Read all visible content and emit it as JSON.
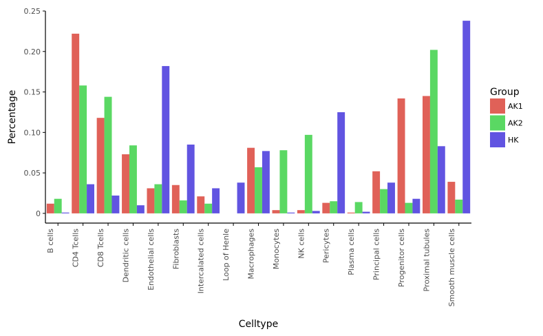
{
  "chart_data": {
    "type": "bar",
    "xlabel": "Celltype",
    "ylabel": "Percentage",
    "ylim": [
      -0.012,
      0.25
    ],
    "yticks": [
      0,
      0.05,
      0.1,
      0.15,
      0.2,
      0.25
    ],
    "ytick_labels": [
      "0",
      "0.05",
      "0.10",
      "0.15",
      "0.20",
      "0.25"
    ],
    "categories": [
      "B cells",
      "CD4 Tcells",
      "CD8 Tcells",
      "Dendritic cells",
      "Endothelial cells",
      "Fibroblasts",
      "Intercalated cells",
      "Loop of Henle",
      "Macrophages",
      "Monocytes",
      "NK cells",
      "Pericytes",
      "Plasma cells",
      "Principal cells",
      "Progenitor cells",
      "Proximal tubules",
      "Smooth muscle cells"
    ],
    "series": [
      {
        "name": "AK1",
        "color": "#e06158",
        "values": [
          0.012,
          0.222,
          0.118,
          0.073,
          0.031,
          0.035,
          0.021,
          0.0,
          0.081,
          0.004,
          0.004,
          0.013,
          0.001,
          0.052,
          0.142,
          0.145,
          0.039
        ]
      },
      {
        "name": "AK2",
        "color": "#5ad863",
        "values": [
          0.018,
          0.158,
          0.144,
          0.084,
          0.036,
          0.016,
          0.012,
          0.0,
          0.057,
          0.078,
          0.097,
          0.015,
          0.014,
          0.03,
          0.013,
          0.202,
          0.017
        ]
      },
      {
        "name": "HK",
        "color": "#6154e1",
        "values": [
          0.001,
          0.036,
          0.022,
          0.01,
          0.182,
          0.085,
          0.031,
          0.038,
          0.077,
          0.001,
          0.003,
          0.125,
          0.002,
          0.038,
          0.018,
          0.083,
          0.238
        ]
      }
    ],
    "legend": {
      "title": "Group",
      "placement": "right"
    },
    "grid": false
  }
}
